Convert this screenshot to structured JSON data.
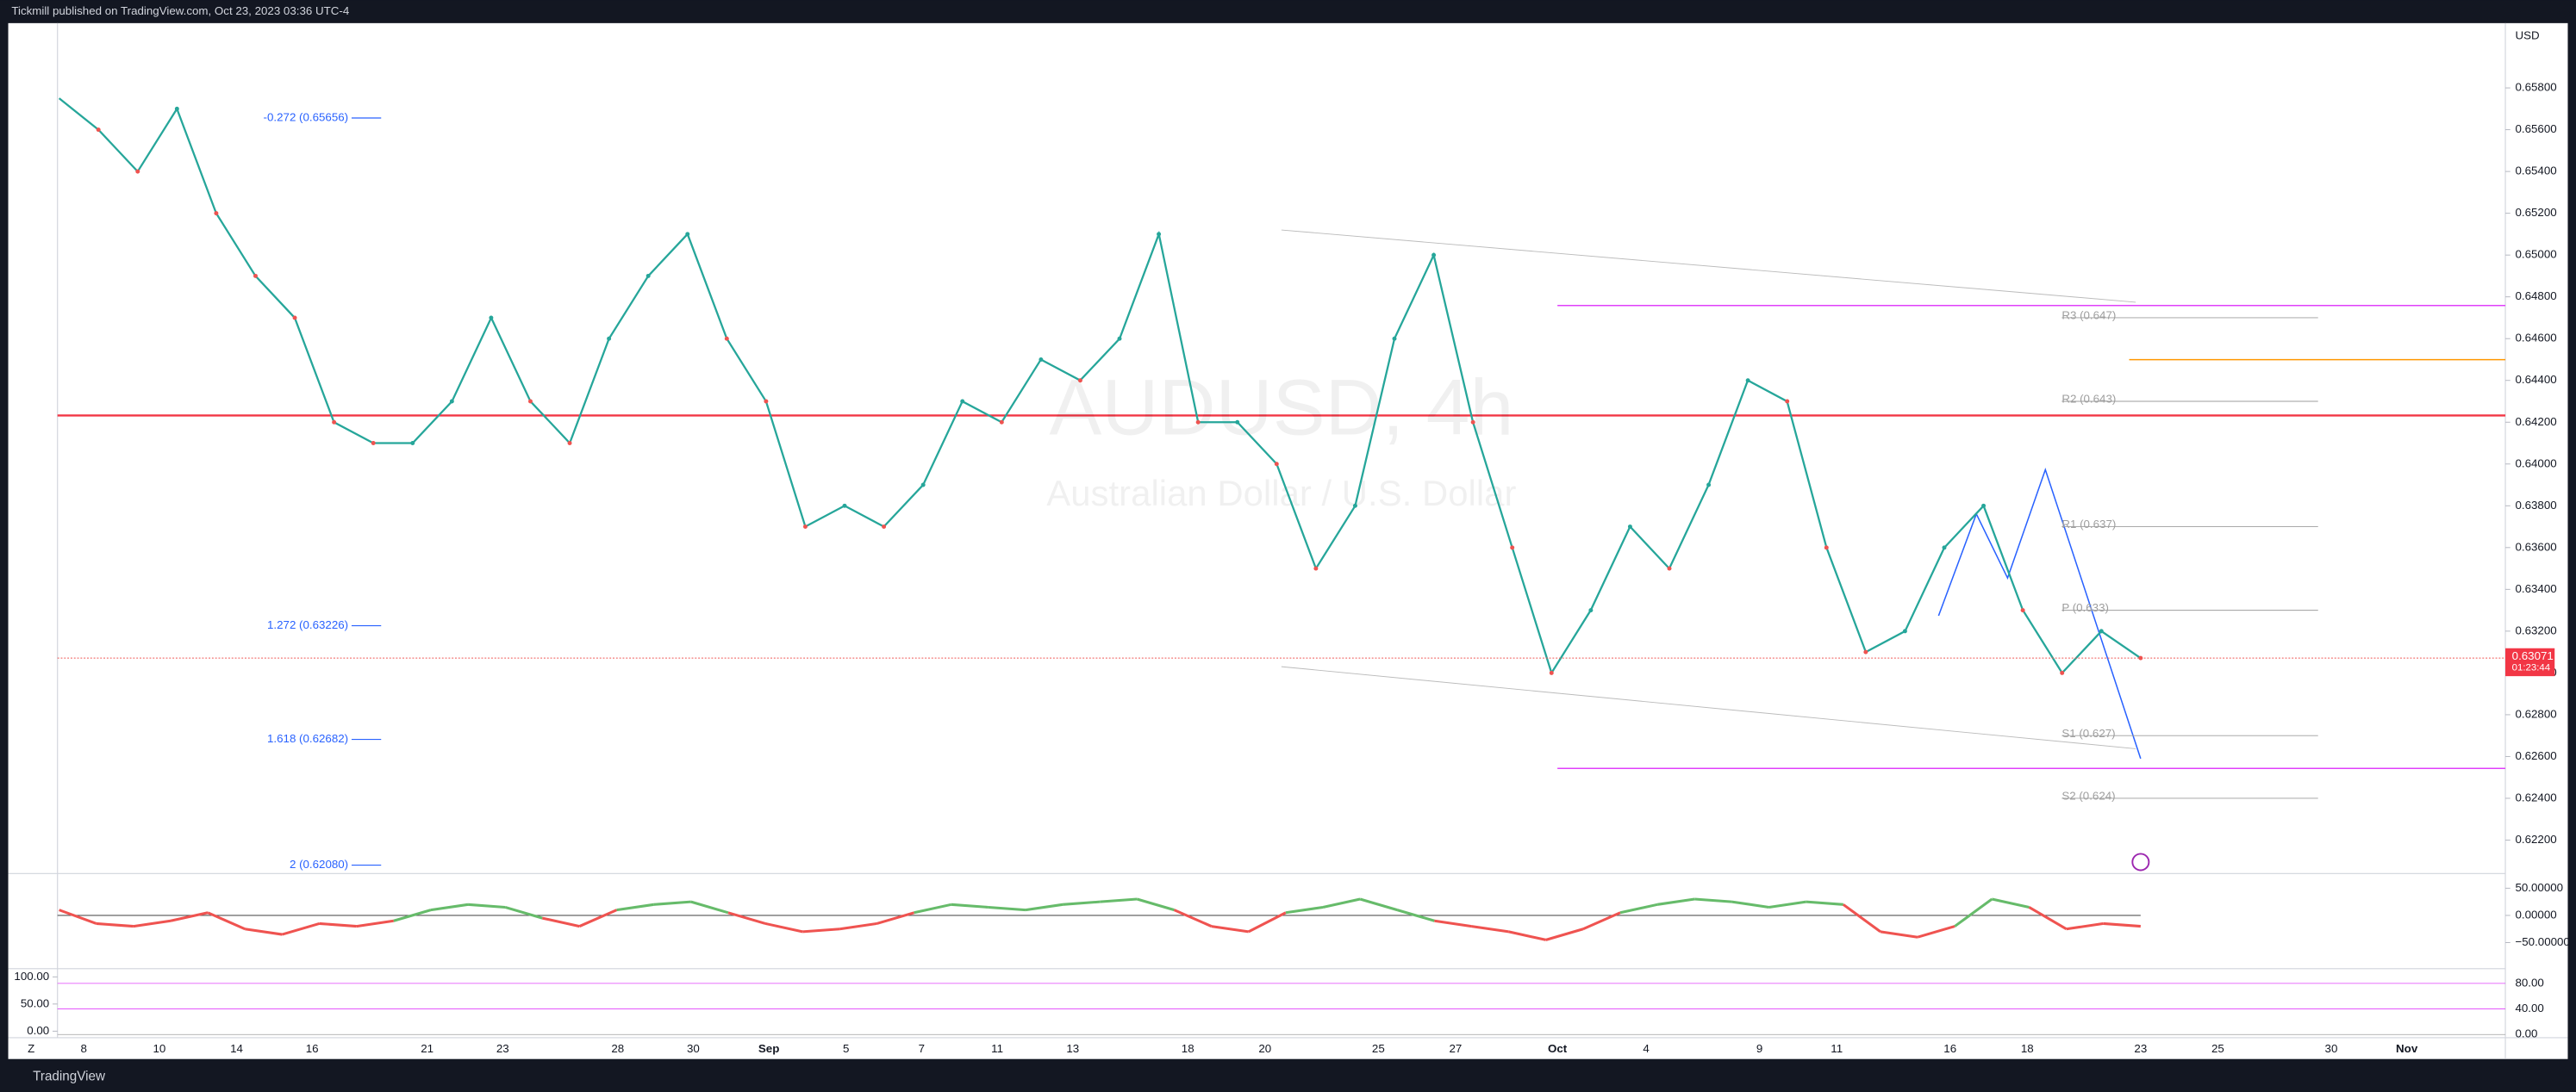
{
  "header": {
    "title": "Tickmill published on TradingView.com, Oct 23, 2023 03:36 UTC-4"
  },
  "footer": {
    "brand": "TradingView",
    "zoom": "Z"
  },
  "chart_data": {
    "type": "line",
    "watermark": "AUDUSD, 4h",
    "subtitle": "Australian Dollar / U.S. Dollar",
    "currency": "USD",
    "color": "#26a69a",
    "down_color": "#ef5350",
    "values": [
      0.6575,
      0.656,
      0.654,
      0.657,
      0.652,
      0.649,
      0.647,
      0.642,
      0.641,
      0.641,
      0.643,
      0.647,
      0.643,
      0.641,
      0.646,
      0.649,
      0.651,
      0.646,
      0.643,
      0.637,
      0.638,
      0.637,
      0.639,
      0.643,
      0.642,
      0.645,
      0.644,
      0.646,
      0.651,
      0.642,
      0.642,
      0.64,
      0.635,
      0.638,
      0.646,
      0.65,
      0.642,
      0.636,
      0.63,
      0.633,
      0.637,
      0.635,
      0.639,
      0.644,
      0.643,
      0.636,
      0.631,
      0.632,
      0.636,
      0.638,
      0.633,
      0.63,
      0.632,
      0.63071
    ],
    "last_price": 0.63071,
    "countdown": "01:23:44",
    "ylim": [
      0.6204,
      0.6611
    ],
    "yticks": [
      {
        "value": 0.658,
        "label": "0.65800"
      },
      {
        "value": 0.656,
        "label": "0.65600"
      },
      {
        "value": 0.654,
        "label": "0.65400"
      },
      {
        "value": 0.652,
        "label": "0.65200"
      },
      {
        "value": 0.65,
        "label": "0.65000"
      },
      {
        "value": 0.648,
        "label": "0.64800"
      },
      {
        "value": 0.646,
        "label": "0.64600"
      },
      {
        "value": 0.644,
        "label": "0.64400"
      },
      {
        "value": 0.642,
        "label": "0.64200"
      },
      {
        "value": 0.64,
        "label": "0.64000"
      },
      {
        "value": 0.638,
        "label": "0.63800"
      },
      {
        "value": 0.636,
        "label": "0.63600"
      },
      {
        "value": 0.634,
        "label": "0.63400"
      },
      {
        "value": 0.632,
        "label": "0.63200"
      },
      {
        "value": 0.63,
        "label": "0.63000"
      },
      {
        "value": 0.628,
        "label": "0.62800"
      },
      {
        "value": 0.626,
        "label": "0.62600"
      },
      {
        "value": 0.624,
        "label": "0.62400"
      },
      {
        "value": 0.622,
        "label": "0.62200"
      }
    ],
    "xticks": [
      "8",
      "10",
      "14",
      "16",
      "21",
      "23",
      "28",
      "30",
      "Sep",
      "5",
      "7",
      "11",
      "13",
      "18",
      "20",
      "25",
      "27",
      "Oct",
      "4",
      "9",
      "11",
      "16",
      "18",
      "23",
      "25",
      "30",
      "Nov"
    ],
    "fib_levels": [
      {
        "label": "-0.272 (0.65656)",
        "value": 0.65656
      },
      {
        "label": "1.272 (0.63226)",
        "value": 0.63226
      },
      {
        "label": "1.618 (0.62682)",
        "value": 0.62682
      },
      {
        "label": "2 (0.62080)",
        "value": 0.6208
      }
    ],
    "pivots": [
      {
        "label": "R3 (0.647)",
        "value": 0.647
      },
      {
        "label": "R2 (0.643)",
        "value": 0.643
      },
      {
        "label": "R1 (0.637)",
        "value": 0.637
      },
      {
        "label": "P (0.633)",
        "value": 0.633
      },
      {
        "label": "S1 (0.627)",
        "value": 0.627
      },
      {
        "label": "S2 (0.624)",
        "value": 0.624
      }
    ],
    "oscillator": {
      "values": [
        10,
        -15,
        -20,
        -10,
        5,
        -25,
        -35,
        -15,
        -20,
        -10,
        10,
        20,
        15,
        -5,
        -20,
        10,
        20,
        25,
        5,
        -15,
        -30,
        -25,
        -15,
        5,
        20,
        15,
        10,
        20,
        25,
        30,
        10,
        -20,
        -30,
        5,
        15,
        30,
        10,
        -10,
        -20,
        -30,
        -45,
        -25,
        5,
        20,
        30,
        25,
        15,
        25,
        20,
        -30,
        -40,
        -20,
        30,
        15,
        -25,
        -15,
        -20
      ],
      "ylim": [
        -98,
        77
      ],
      "yticks": [
        {
          "value": 50,
          "label": "50.00000"
        },
        {
          "value": 0,
          "label": "0.00000"
        },
        {
          "value": -50,
          "label": "−50.00000"
        }
      ]
    },
    "stochastic": {
      "ylim": [
        -12,
        115
      ],
      "yticks": [
        {
          "value": 100,
          "label": "100.00"
        },
        {
          "value": 50,
          "label": "50.00"
        },
        {
          "value": 0,
          "label": "0.00"
        }
      ],
      "y2lim": [
        -5,
        103
      ],
      "y2ticks": [
        {
          "value": 80,
          "label": "80.00"
        },
        {
          "value": 40,
          "label": "40.00"
        },
        {
          "value": 0,
          "label": "0.00"
        }
      ]
    }
  }
}
